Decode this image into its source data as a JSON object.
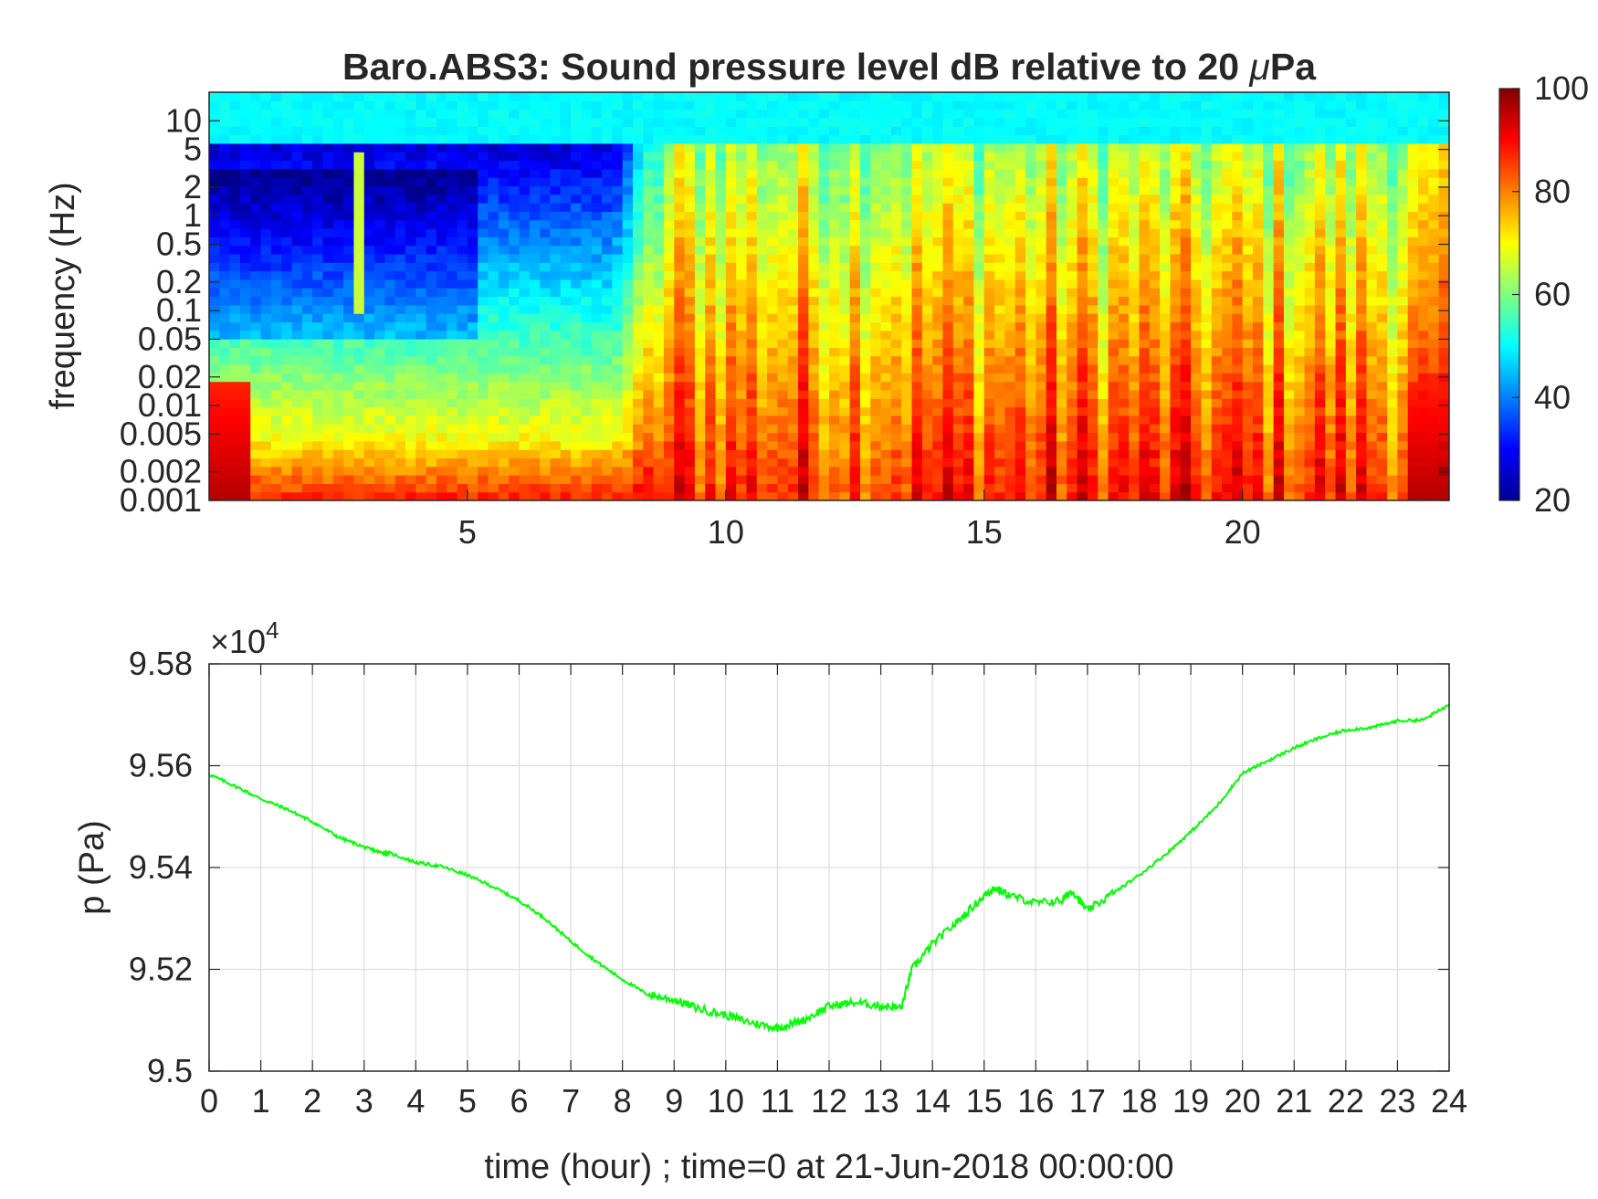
{
  "chart_data": [
    {
      "type": "heatmap",
      "title": "Baro.ABS3: Sound pressure level dB relative to 20 μPa",
      "title_prefix": "Baro.ABS3: Sound pressure level dB relative to 20 ",
      "title_mu": "μ",
      "title_suffix": "Pa",
      "ylabel": "frequency (Hz)",
      "xlabel": "",
      "xlim": [
        0,
        24
      ],
      "x_ticks": [
        5,
        10,
        15,
        20
      ],
      "y_scale": "log",
      "ylim": [
        0.001,
        20
      ],
      "y_ticks": [
        0.001,
        0.002,
        0.005,
        0.01,
        0.02,
        0.05,
        0.1,
        0.2,
        0.5,
        1,
        2,
        5,
        10
      ],
      "y_tick_labels": [
        "0.001",
        "0.002",
        "0.005",
        "0.01",
        "0.02",
        "0.05",
        "0.1",
        "0.2",
        "0.5",
        "1",
        "2",
        "5",
        "10"
      ],
      "colormap": "jet",
      "clim": [
        20,
        100
      ],
      "colorbar_ticks": [
        20,
        40,
        60,
        80,
        100
      ],
      "colorbar_tick_labels": [
        "20",
        "40",
        "60",
        "80",
        "100"
      ],
      "colorbar_location": "right",
      "description_levels": {
        "quiet_period_hours": [
          0,
          8.5
        ],
        "quiet_period_dB_range": [
          30,
          70
        ],
        "active_period_hours": [
          8.5,
          24
        ],
        "active_period_dB_range": [
          70,
          100
        ],
        "top_band_hz_above_5_dB": 50
      },
      "grid": false
    },
    {
      "type": "line",
      "title": "",
      "xlabel": "time (hour) ; time=0 at 21-Jun-2018 00:00:00",
      "ylabel": "p (Pa)",
      "xlim": [
        0,
        24
      ],
      "ylim": [
        95000,
        95800
      ],
      "x_ticks": [
        0,
        1,
        2,
        3,
        4,
        5,
        6,
        7,
        8,
        9,
        10,
        11,
        12,
        13,
        14,
        15,
        16,
        17,
        18,
        19,
        20,
        21,
        22,
        23,
        24
      ],
      "x_tick_labels": [
        "0",
        "1",
        "2",
        "3",
        "4",
        "5",
        "6",
        "7",
        "8",
        "9",
        "10",
        "11",
        "12",
        "13",
        "14",
        "15",
        "16",
        "17",
        "18",
        "19",
        "20",
        "21",
        "22",
        "23",
        "24"
      ],
      "y_ticks": [
        95000,
        95200,
        95400,
        95600,
        95800
      ],
      "y_tick_labels": [
        "9.5",
        "9.52",
        "9.54",
        "9.56",
        "9.58"
      ],
      "y_exponent_label": "×10",
      "y_exponent_power": "4",
      "grid": true,
      "series": [
        {
          "color": "#00ff00",
          "x": [
            0,
            0.5,
            1,
            1.5,
            2,
            2.5,
            3,
            3.3,
            3.5,
            4,
            4.5,
            5,
            5.5,
            6,
            6.5,
            7,
            7.5,
            8,
            8.5,
            9,
            9.5,
            10,
            10.5,
            11,
            11.5,
            12,
            12.5,
            13,
            13.4,
            13.6,
            14,
            14.5,
            15,
            15.2,
            15.5,
            16,
            16.5,
            16.7,
            17,
            17.5,
            18,
            18.5,
            19,
            19.5,
            20,
            20.5,
            21,
            21.5,
            22,
            22.5,
            23,
            23.5,
            24
          ],
          "y": [
            95583,
            95560,
            95535,
            95515,
            95490,
            95460,
            95440,
            95430,
            95428,
            95410,
            95402,
            95385,
            95362,
            95335,
            95300,
            95255,
            95215,
            95180,
            95150,
            95140,
            95122,
            95110,
            95095,
            95085,
            95100,
            95128,
            95135,
            95128,
            95125,
            95200,
            95250,
            95295,
            95345,
            95360,
            95345,
            95330,
            95335,
            95355,
            95315,
            95350,
            95385,
            95425,
            95470,
            95520,
            95585,
            95610,
            95635,
            95655,
            95670,
            95675,
            95688,
            95690,
            95720
          ]
        }
      ]
    }
  ]
}
